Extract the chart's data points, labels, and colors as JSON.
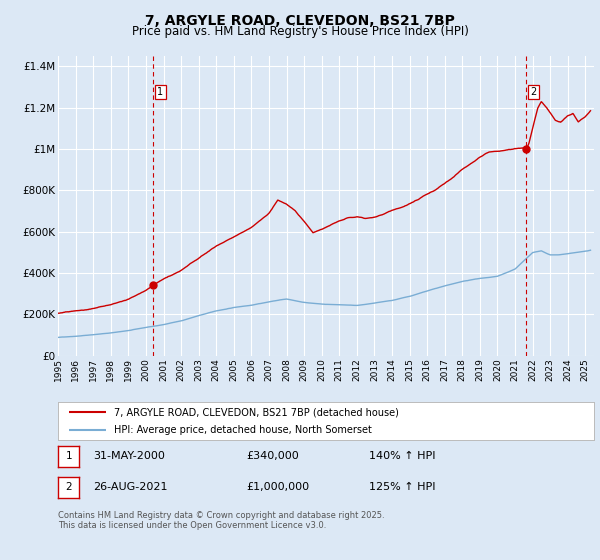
{
  "title": "7, ARGYLE ROAD, CLEVEDON, BS21 7BP",
  "subtitle": "Price paid vs. HM Land Registry's House Price Index (HPI)",
  "bg_color": "#dce8f5",
  "plot_bg_color": "#dce8f5",
  "red_color": "#cc0000",
  "blue_color": "#7aadd4",
  "grid_color": "#ffffff",
  "ylim": [
    0,
    1450000
  ],
  "xlim_start": 1995.0,
  "xlim_end": 2025.5,
  "yticks": [
    0,
    200000,
    400000,
    600000,
    800000,
    1000000,
    1200000,
    1400000
  ],
  "ytick_labels": [
    "£0",
    "£200K",
    "£400K",
    "£600K",
    "£800K",
    "£1M",
    "£1.2M",
    "£1.4M"
  ],
  "xticks": [
    1995,
    1996,
    1997,
    1998,
    1999,
    2000,
    2001,
    2002,
    2003,
    2004,
    2005,
    2006,
    2007,
    2008,
    2009,
    2010,
    2011,
    2012,
    2013,
    2014,
    2015,
    2016,
    2017,
    2018,
    2019,
    2020,
    2021,
    2022,
    2023,
    2024,
    2025
  ],
  "marker1_x": 2000.416,
  "marker1_y": 340000,
  "marker2_x": 2021.653,
  "marker2_y": 1000000,
  "vline1_x": 2000.416,
  "vline2_x": 2021.653,
  "legend_label_red": "7, ARGYLE ROAD, CLEVEDON, BS21 7BP (detached house)",
  "legend_label_blue": "HPI: Average price, detached house, North Somerset",
  "table_entries": [
    {
      "num": "1",
      "date": "31-MAY-2000",
      "price": "£340,000",
      "hpi": "140% ↑ HPI"
    },
    {
      "num": "2",
      "date": "26-AUG-2021",
      "price": "£1,000,000",
      "hpi": "125% ↑ HPI"
    }
  ],
  "footer": "Contains HM Land Registry data © Crown copyright and database right 2025.\nThis data is licensed under the Open Government Licence v3.0.",
  "title_fontsize": 10,
  "subtitle_fontsize": 8.5
}
